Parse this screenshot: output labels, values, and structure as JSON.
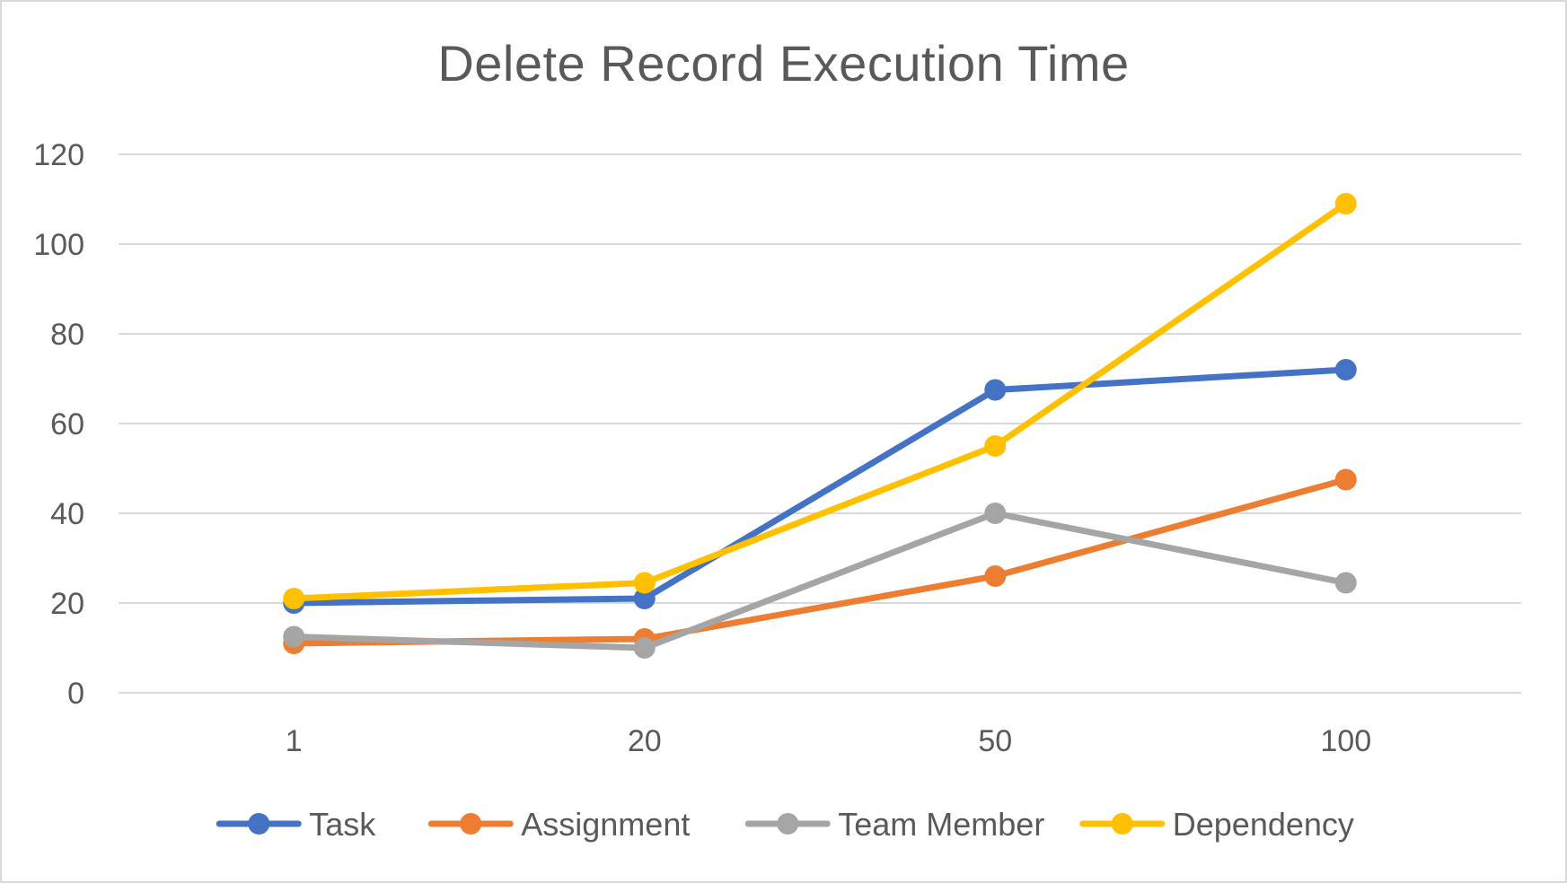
{
  "chart_data": {
    "type": "line",
    "title": "Delete Record Execution Time",
    "xlabel": "",
    "ylabel": "",
    "categories": [
      "1",
      "20",
      "50",
      "100"
    ],
    "ylim": [
      0,
      120
    ],
    "yticks": [
      0,
      20,
      40,
      60,
      80,
      100,
      120
    ],
    "grid": true,
    "legend_position": "bottom",
    "series": [
      {
        "name": "Task",
        "color": "#4472C4",
        "values": [
          20,
          21,
          67.5,
          72
        ]
      },
      {
        "name": "Assignment",
        "color": "#ED7D31",
        "values": [
          11,
          12,
          26,
          47.5
        ]
      },
      {
        "name": "Team Member",
        "color": "#A5A5A5",
        "values": [
          12.5,
          10,
          40,
          24.5
        ]
      },
      {
        "name": "Dependency",
        "color": "#FFC000",
        "values": [
          21,
          24.5,
          55,
          109
        ]
      }
    ]
  }
}
